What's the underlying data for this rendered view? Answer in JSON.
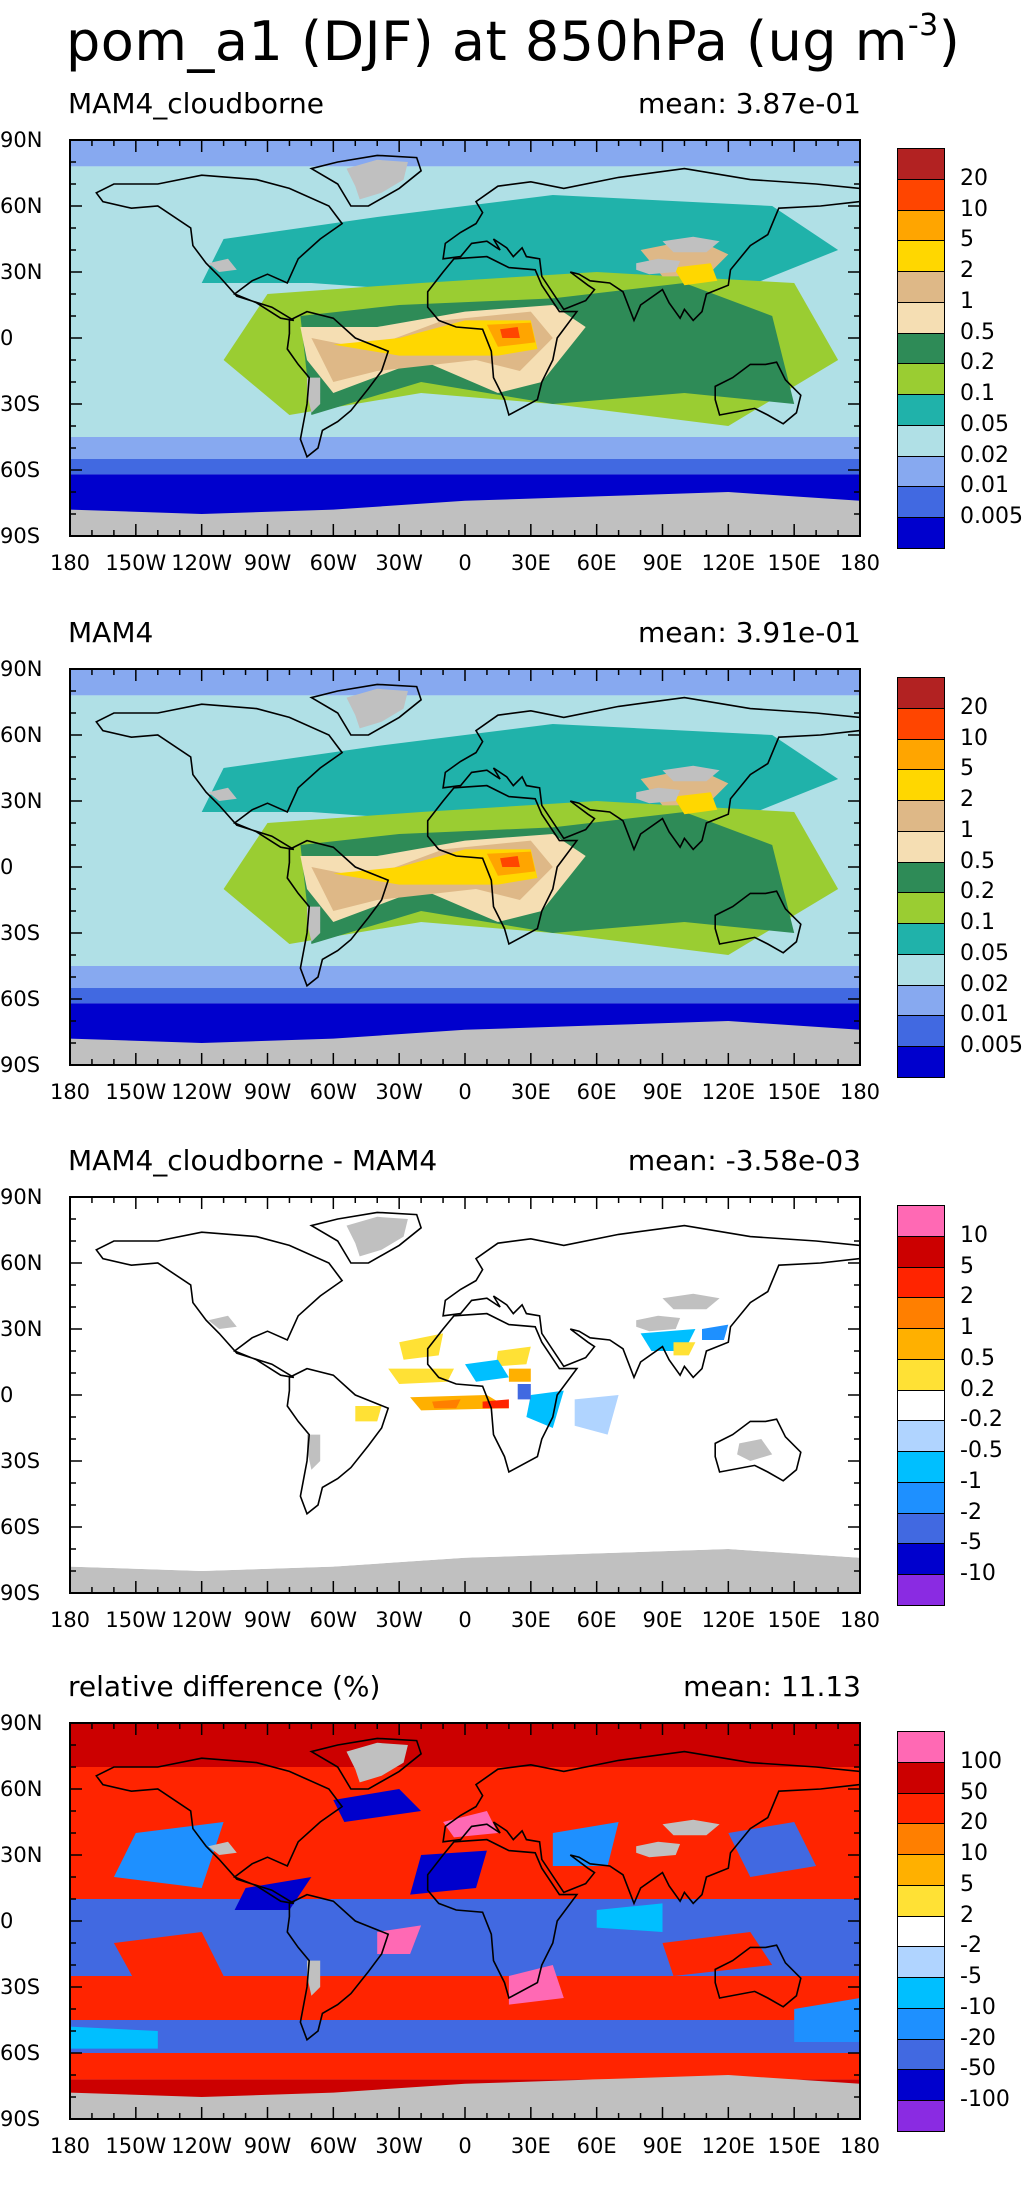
{
  "title": {
    "text": "pom_a1 (DJF) at 850hPa (ug m",
    "exponent": "-3",
    "close": ")"
  },
  "axes": {
    "lat_labels": [
      "90N",
      "60N",
      "30N",
      "0",
      "30S",
      "60S",
      "90S"
    ],
    "lon_labels": [
      "180",
      "150W",
      "120W",
      "90W",
      "60W",
      "30W",
      "0",
      "30E",
      "60E",
      "90E",
      "120E",
      "150E",
      "180"
    ]
  },
  "panels": [
    {
      "title": "MAM4_cloudborne",
      "mean": "mean: 3.87e-01",
      "legend_labels": [
        "20",
        "10",
        "5",
        "2",
        "1",
        "0.5",
        "0.2",
        "0.1",
        "0.05",
        "0.02",
        "0.01",
        "0.005"
      ],
      "legend_colors": [
        "#b22222",
        "#ff4500",
        "#ffa500",
        "#ffd700",
        "#deb887",
        "#f5deb3",
        "#2e8b57",
        "#9acd32",
        "#20b2aa",
        "#b0e0e6",
        "#87a9f0",
        "#4169e1",
        "#0000cd"
      ]
    },
    {
      "title": "MAM4",
      "mean": "mean: 3.91e-01",
      "legend_labels": [
        "20",
        "10",
        "5",
        "2",
        "1",
        "0.5",
        "0.2",
        "0.1",
        "0.05",
        "0.02",
        "0.01",
        "0.005"
      ],
      "legend_colors": [
        "#b22222",
        "#ff4500",
        "#ffa500",
        "#ffd700",
        "#deb887",
        "#f5deb3",
        "#2e8b57",
        "#9acd32",
        "#20b2aa",
        "#b0e0e6",
        "#87a9f0",
        "#4169e1",
        "#0000cd"
      ]
    },
    {
      "title": "MAM4_cloudborne - MAM4",
      "mean": "mean: -3.58e-03",
      "legend_labels": [
        "10",
        "5",
        "2",
        "1",
        "0.5",
        "0.2",
        "-0.2",
        "-0.5",
        "-1",
        "-2",
        "-5",
        "-10"
      ],
      "legend_colors": [
        "#ff69b4",
        "#cc0000",
        "#ff2400",
        "#ff7f00",
        "#ffb000",
        "#ffe135",
        "#ffffff",
        "#b0d4ff",
        "#00bfff",
        "#1e90ff",
        "#4169e1",
        "#0000cd",
        "#8a2be2"
      ]
    },
    {
      "title": "relative difference (%)",
      "mean": "mean: 11.13",
      "legend_labels": [
        "100",
        "50",
        "20",
        "10",
        "5",
        "2",
        "-2",
        "-5",
        "-10",
        "-20",
        "-50",
        "-100"
      ],
      "legend_colors": [
        "#ff69b4",
        "#cc0000",
        "#ff2400",
        "#ff7f00",
        "#ffb000",
        "#ffe135",
        "#ffffff",
        "#b0d4ff",
        "#00bfff",
        "#1e90ff",
        "#4169e1",
        "#0000cd",
        "#8a2be2"
      ]
    }
  ],
  "colors": {
    "land_mask": "#c0c0c0",
    "frame": "#000000"
  }
}
